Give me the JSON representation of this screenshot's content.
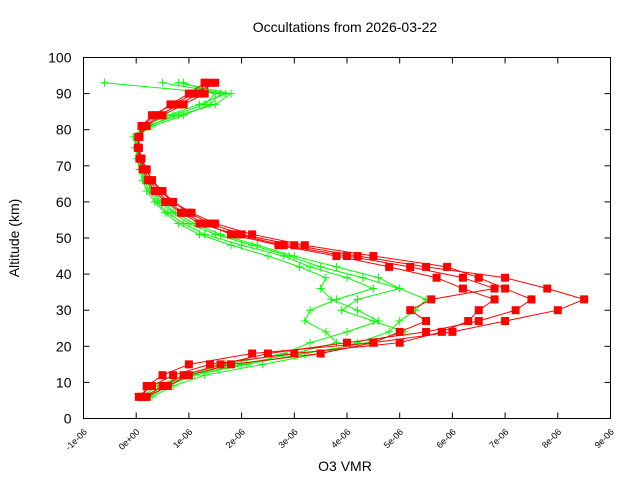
{
  "chart_data": {
    "type": "line",
    "title": "Occultations from 2026-03-22",
    "xlabel": "O3 VMR",
    "ylabel": "Altitude (km)",
    "xlim": [
      -1e-06,
      9e-06
    ],
    "ylim": [
      0,
      100
    ],
    "grid": false,
    "legend": "none",
    "x_tick_labels": [
      "-1e-06",
      "0e+00",
      "1e-06",
      "2e-06",
      "3e-06",
      "4e-06",
      "5e-06",
      "6e-06",
      "7e-06",
      "8e-06",
      "9e-06"
    ],
    "y_tick_labels": [
      "0",
      "10",
      "20",
      "30",
      "40",
      "50",
      "60",
      "70",
      "80",
      "90",
      "100"
    ],
    "altitudes_km": [
      6,
      9,
      12,
      15,
      18,
      21,
      24,
      27,
      30,
      33,
      36,
      39,
      42,
      45,
      48,
      51,
      54,
      57,
      60,
      63,
      66,
      69,
      72,
      75,
      78,
      81,
      84,
      87,
      90,
      93
    ],
    "series": [
      {
        "color": "#00ff00",
        "marker": "plus",
        "profiles": [
          [
            2e-07,
            5e-07,
            1e-06,
            2e-06,
            3e-06,
            3.8e-06,
            3.6e-06,
            3.2e-06,
            3.3e-06,
            3.8e-06,
            4.5e-06,
            4e-06,
            3.3e-06,
            2.8e-06,
            2e-06,
            1.3e-06,
            9e-07,
            6e-07,
            4e-07,
            2.5e-07,
            1.5e-07,
            8e-08,
            3e-08,
            0.0,
            -5e-08,
            1.5e-07,
            6e-07,
            1.2e-06,
            1.7e-06,
            5e-07
          ],
          [
            3e-07,
            7e-07,
            1.3e-06,
            2.4e-06,
            3.5e-06,
            4.2e-06,
            4.8e-06,
            5e-06,
            5.3e-06,
            5.5e-06,
            5e-06,
            4.3e-06,
            3.5e-06,
            2.9e-06,
            2.2e-06,
            1.5e-06,
            1e-06,
            7e-07,
            4.5e-07,
            3e-07,
            1.8e-07,
            1e-07,
            5e-08,
            2e-08,
            0.0,
            2e-07,
            8e-07,
            1.5e-06,
            1.8e-06,
            8e-07
          ],
          [
            1e-07,
            4e-07,
            9e-07,
            1.7e-06,
            2.8e-06,
            3.3e-06,
            4e-06,
            4.6e-06,
            4.2e-06,
            3.7e-06,
            3.5e-06,
            3.6e-06,
            3.1e-06,
            2.5e-06,
            1.8e-06,
            1.2e-06,
            8e-07,
            5.5e-07,
            3.5e-07,
            2e-07,
            1.2e-07,
            6e-08,
            2e-08,
            -2e-08,
            0.0,
            3e-07,
            9e-07,
            1.4e-06,
            1.6e-06,
            -6e-07
          ],
          [
            2.5e-07,
            6e-07,
            1.1e-06,
            2.1e-06,
            3.2e-06,
            4.4e-06,
            5.1e-06,
            4.5e-06,
            3.9e-06,
            4.2e-06,
            5e-06,
            4.6e-06,
            3.8e-06,
            3e-06,
            2.3e-06,
            1.6e-06,
            1.1e-06,
            7.5e-07,
            5e-07,
            3.2e-07,
            2e-07,
            1.2e-07,
            6e-08,
            2e-08,
            1e-08,
            2.5e-07,
            7e-07,
            1.3e-06,
            1.5e-06,
            9e-07
          ]
        ]
      },
      {
        "color": "#ff0000",
        "marker": "filled-square",
        "profiles": [
          [
            1e-07,
            2e-07,
            5e-07,
            1e-06,
            2.2e-06,
            4.5e-06,
            6e-06,
            7e-06,
            8e-06,
            8.5e-06,
            7.8e-06,
            7e-06,
            5.5e-06,
            4.2e-06,
            3e-06,
            2e-06,
            1.4e-06,
            1e-06,
            7e-07,
            4.5e-07,
            3e-07,
            2e-07,
            1e-07,
            5e-08,
            5e-08,
            1e-07,
            3e-07,
            7e-07,
            1.1e-06,
            1.5e-06
          ],
          [
            5e-08,
            3e-07,
            7e-07,
            1.4e-06,
            3e-06,
            5e-06,
            5.8e-06,
            6.3e-06,
            6.5e-06,
            6.8e-06,
            6.2e-06,
            5.7e-06,
            4.8e-06,
            3.8e-06,
            2.7e-06,
            1.8e-06,
            1.3e-06,
            9e-07,
            6e-07,
            4e-07,
            2.5e-07,
            1.5e-07,
            8e-08,
            4e-08,
            6e-08,
            1.5e-07,
            4.5e-07,
            8e-07,
            1.2e-06,
            1.3e-06
          ],
          [
            2e-07,
            6e-07,
            1e-06,
            1.8e-06,
            3.5e-06,
            4.5e-06,
            5e-06,
            5.5e-06,
            5.2e-06,
            5.6e-06,
            6.8e-06,
            6.2e-06,
            5.2e-06,
            4e-06,
            2.8e-06,
            1.9e-06,
            1.2e-06,
            8.5e-07,
            5.5e-07,
            3.5e-07,
            2.2e-07,
            1.2e-07,
            6e-08,
            3e-08,
            4e-08,
            1.2e-07,
            3.5e-07,
            6.5e-07,
            1e-06,
            1.3e-06
          ],
          [
            1.5e-07,
            5e-07,
            9e-07,
            1.6e-06,
            2.5e-06,
            4e-06,
            5.5e-06,
            6.5e-06,
            7.2e-06,
            7.5e-06,
            7e-06,
            6.5e-06,
            5.9e-06,
            4.5e-06,
            3.2e-06,
            2.2e-06,
            1.5e-06,
            1.05e-06,
            7e-07,
            5e-07,
            3e-07,
            1.8e-07,
            1e-07,
            5e-08,
            6e-08,
            2e-07,
            5e-07,
            9e-07,
            1.3e-06,
            1.4e-06
          ]
        ]
      }
    ]
  }
}
